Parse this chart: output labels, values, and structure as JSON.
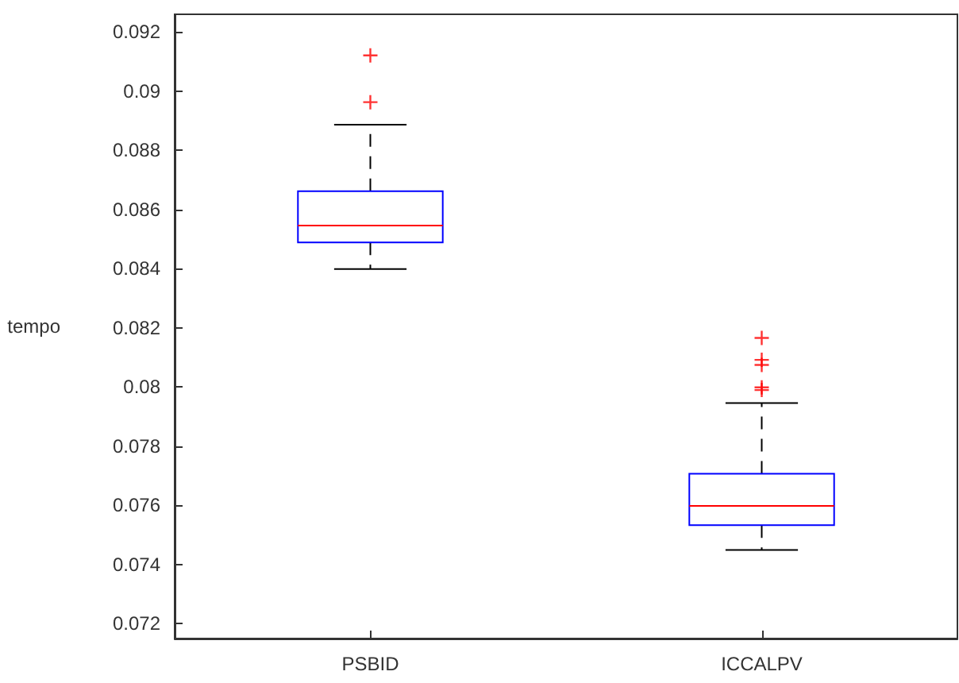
{
  "chart_data": {
    "type": "box",
    "ylabel": "tempo",
    "categories": [
      "PSBID",
      "ICCALPV"
    ],
    "series": [
      {
        "color": "#0000ff",
        "boxes": [
          {
            "low": 0.08399,
            "q1": 0.08489,
            "median": 0.08546,
            "q3": 0.08662,
            "high": 0.08887,
            "outliers": [
              0.09121,
              0.08963
            ]
          },
          {
            "low": 0.07449,
            "q1": 0.07533,
            "median": 0.07598,
            "q3": 0.07707,
            "high": 0.07946,
            "outliers": [
              0.08166,
              0.08092,
              0.08075,
              0.07999,
              0.0799
            ]
          }
        ]
      }
    ],
    "ylim": [
      0.0715,
      0.0926
    ],
    "yticks": [
      0.072,
      0.074,
      0.076,
      0.078,
      0.08,
      0.082,
      0.084,
      0.086,
      0.088,
      0.09,
      0.092
    ],
    "marker": "cross",
    "grid": false
  }
}
